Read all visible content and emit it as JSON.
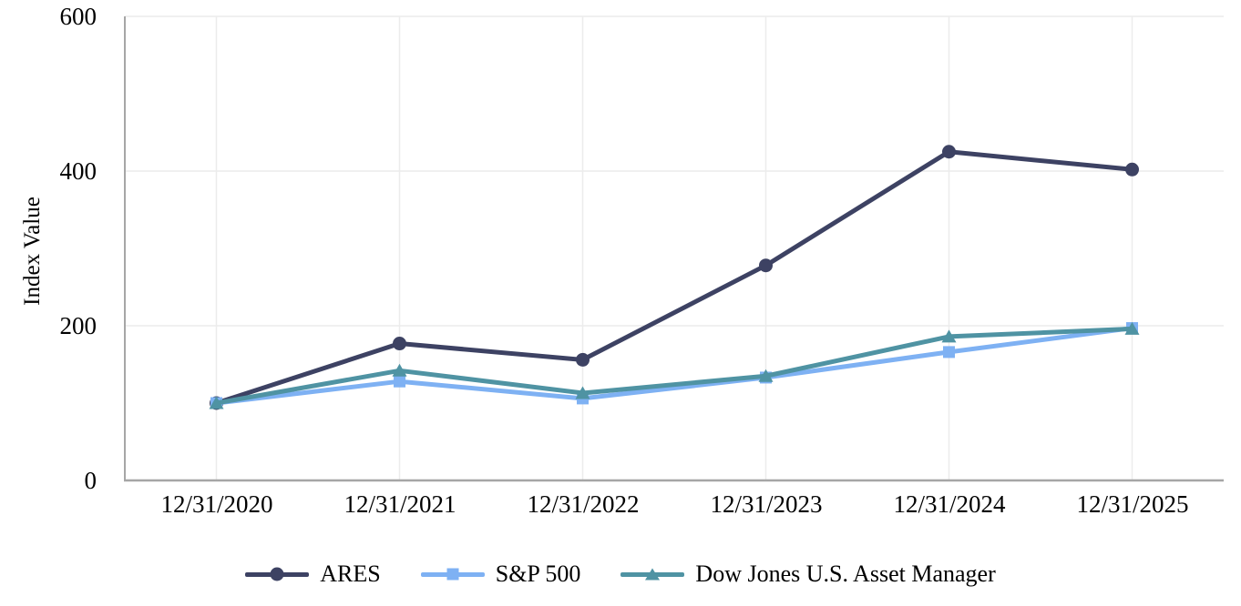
{
  "chart_data": {
    "type": "line",
    "title": "",
    "ylabel": "Index Value",
    "xlabel": "",
    "categories": [
      "12/31/2020",
      "12/31/2021",
      "12/31/2022",
      "12/31/2023",
      "12/31/2024",
      "12/31/2025"
    ],
    "y_ticks": [
      0,
      200,
      400,
      600
    ],
    "ylim": [
      0,
      600
    ],
    "grid": true,
    "legend_position": "bottom",
    "series": [
      {
        "name": "ARES",
        "marker": "circle",
        "color": "#3d4263",
        "values": [
          100,
          177,
          156,
          278,
          425,
          402
        ]
      },
      {
        "name": "S&P 500",
        "marker": "square",
        "color": "#7eb1f3",
        "values": [
          100,
          128,
          106,
          133,
          166,
          197
        ]
      },
      {
        "name": "Dow Jones U.S. Asset Manager",
        "marker": "triangle",
        "color": "#4f93a3",
        "values": [
          100,
          142,
          113,
          135,
          186,
          196
        ]
      }
    ]
  },
  "colors": {
    "background": "#ffffff",
    "gridline": "#ececec",
    "axis": "#a6a6a6",
    "text": "#000000"
  }
}
